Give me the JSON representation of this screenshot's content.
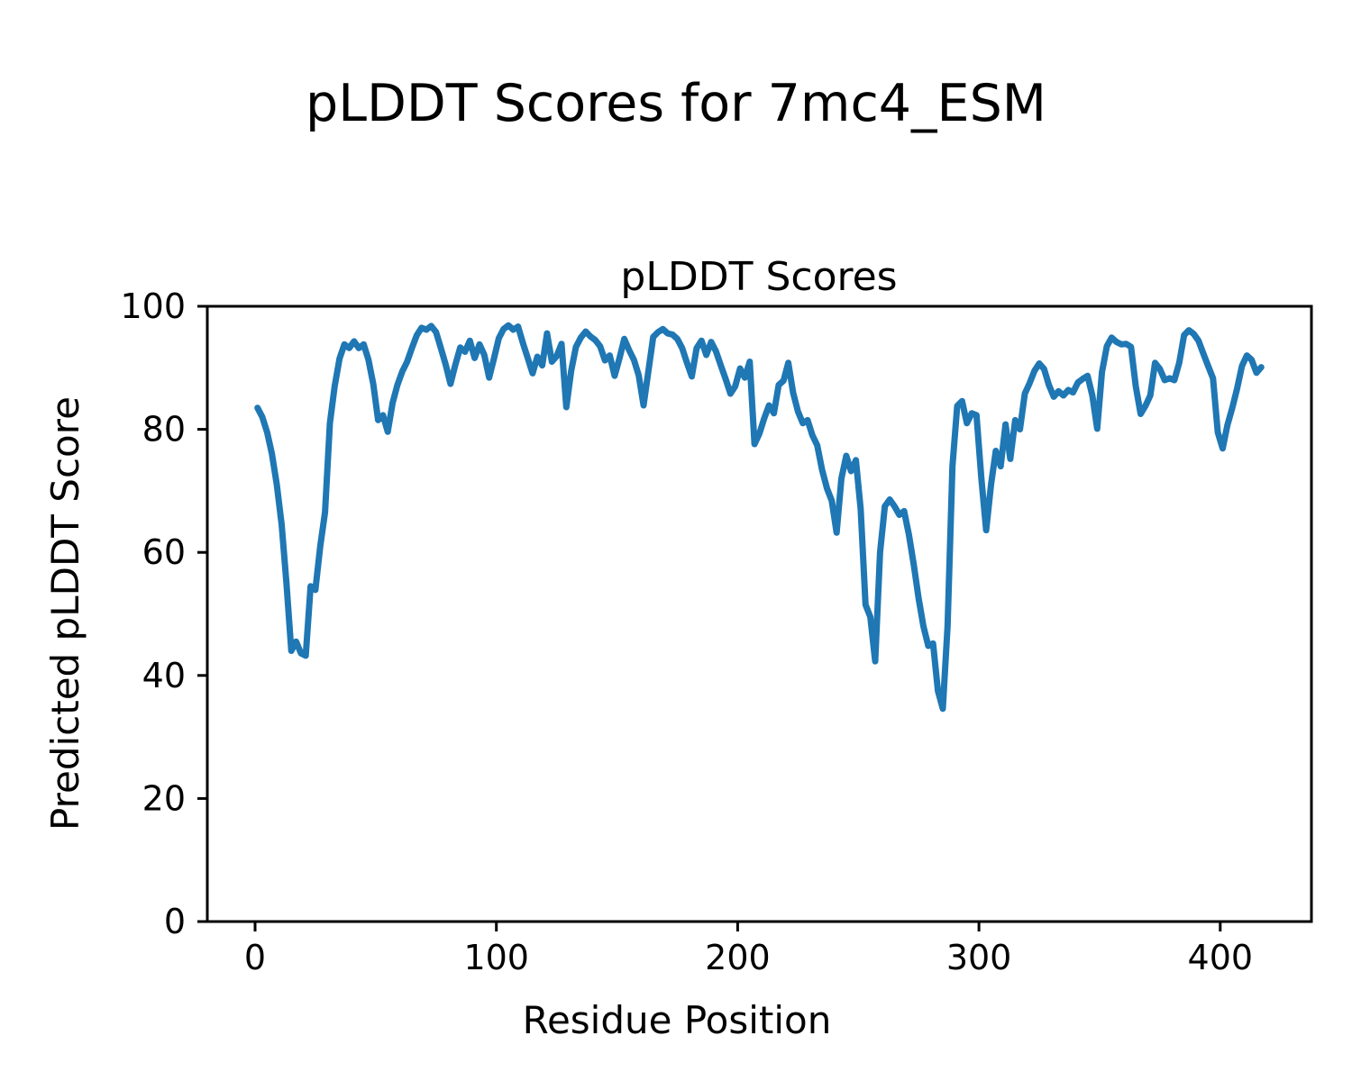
{
  "figure": {
    "suptitle": "pLDDT Scores for 7mc4_ESM",
    "axes_title": "pLDDT Scores",
    "xlabel": "Residue Position",
    "ylabel": "Predicted pLDDT Score"
  },
  "chart_data": {
    "type": "line",
    "title": "pLDDT Scores",
    "suptitle": "pLDDT Scores for 7mc4_ESM",
    "xlabel": "Residue Position",
    "ylabel": "Predicted pLDDT Score",
    "xlim": [
      -19.8,
      437.8
    ],
    "ylim": [
      0,
      100
    ],
    "x_ticks": [
      0,
      100,
      200,
      300,
      400
    ],
    "y_ticks": [
      0,
      20,
      40,
      60,
      80,
      100
    ],
    "grid": false,
    "legend": null,
    "line_color": "#1f77b4",
    "background": "#ffffff",
    "series": [
      {
        "name": "pLDDT",
        "x": [
          1,
          3,
          5,
          7,
          9,
          11,
          13,
          15,
          17,
          19,
          21,
          23,
          25,
          27,
          29,
          31,
          33,
          35,
          37,
          39,
          41,
          43,
          45,
          47,
          49,
          51,
          53,
          55,
          57,
          59,
          61,
          63,
          65,
          67,
          69,
          71,
          73,
          75,
          77,
          79,
          81,
          83,
          85,
          87,
          89,
          91,
          93,
          95,
          97,
          99,
          101,
          103,
          105,
          107,
          109,
          111,
          113,
          115,
          117,
          119,
          121,
          123,
          125,
          127,
          129,
          131,
          133,
          135,
          137,
          139,
          141,
          143,
          145,
          147,
          149,
          151,
          153,
          155,
          157,
          159,
          161,
          163,
          165,
          167,
          169,
          171,
          173,
          175,
          177,
          179,
          181,
          183,
          185,
          187,
          189,
          191,
          193,
          195,
          197,
          199,
          201,
          203,
          205,
          207,
          209,
          211,
          213,
          215,
          217,
          219,
          221,
          223,
          225,
          227,
          229,
          231,
          233,
          235,
          237,
          239,
          241,
          243,
          245,
          247,
          249,
          251,
          253,
          255,
          257,
          259,
          261,
          263,
          265,
          267,
          269,
          271,
          273,
          275,
          277,
          279,
          281,
          283,
          285,
          287,
          289,
          291,
          293,
          295,
          297,
          299,
          301,
          303,
          305,
          307,
          309,
          311,
          313,
          315,
          317,
          319,
          321,
          323,
          325,
          327,
          329,
          331,
          333,
          335,
          337,
          339,
          341,
          343,
          345,
          347,
          349,
          351,
          353,
          355,
          357,
          359,
          361,
          363,
          365,
          367,
          369,
          371,
          373,
          375,
          377,
          379,
          381,
          383,
          385,
          387,
          389,
          391,
          393,
          395,
          397,
          399,
          401,
          403,
          405,
          407,
          409,
          411,
          413,
          415,
          417
        ],
        "y": [
          83.5,
          82.0,
          79.5,
          76.0,
          71.0,
          64.5,
          55.0,
          44.0,
          45.5,
          43.6,
          43.2,
          54.5,
          53.9,
          61.0,
          66.5,
          81.0,
          87.0,
          91.5,
          93.8,
          93.2,
          94.3,
          93.2,
          93.8,
          91.3,
          87.3,
          81.5,
          82.3,
          79.6,
          84.3,
          87.2,
          89.4,
          91.0,
          93.2,
          95.3,
          96.5,
          96.2,
          96.8,
          95.8,
          93.2,
          90.5,
          87.4,
          90.5,
          93.3,
          92.6,
          94.4,
          91.6,
          93.8,
          92.1,
          88.4,
          91.5,
          94.8,
          96.3,
          96.9,
          96.2,
          96.7,
          94.0,
          91.6,
          89.1,
          91.8,
          90.4,
          95.6,
          91.0,
          91.9,
          93.9,
          83.6,
          89.5,
          93.4,
          94.9,
          95.9,
          95.1,
          94.5,
          93.5,
          91.2,
          92.0,
          88.7,
          91.5,
          94.7,
          92.9,
          91.3,
          88.8,
          83.9,
          89.5,
          95.0,
          95.8,
          96.3,
          95.6,
          95.4,
          94.7,
          93.2,
          90.8,
          88.6,
          93.2,
          94.4,
          92.1,
          94.2,
          92.7,
          90.4,
          88.2,
          85.8,
          87.0,
          89.9,
          88.4,
          91.0,
          77.6,
          79.3,
          81.8,
          83.9,
          82.6,
          87.2,
          87.9,
          90.8,
          85.9,
          82.9,
          81.0,
          81.5,
          79.0,
          77.4,
          73.4,
          70.4,
          68.4,
          63.2,
          72.0,
          75.7,
          73.2,
          75.0,
          67.0,
          51.5,
          49.5,
          42.3,
          60.0,
          67.5,
          68.6,
          67.5,
          66.1,
          66.7,
          62.8,
          58.0,
          52.5,
          48.0,
          44.8,
          45.2,
          37.5,
          34.6,
          48.0,
          74.0,
          83.8,
          84.6,
          81.0,
          82.6,
          82.3,
          72.0,
          63.6,
          71.0,
          76.5,
          74.0,
          80.8,
          75.2,
          81.5,
          80.0,
          85.8,
          87.5,
          89.5,
          90.7,
          89.8,
          87.2,
          85.3,
          86.2,
          85.5,
          86.4,
          86.0,
          87.6,
          88.2,
          88.7,
          85.5,
          80.1,
          89.3,
          93.5,
          94.9,
          94.2,
          93.8,
          93.9,
          93.4,
          87.0,
          82.5,
          83.8,
          85.5,
          90.8,
          89.8,
          88.0,
          88.3,
          88.0,
          90.8,
          95.3,
          96.1,
          95.5,
          94.4,
          92.3,
          90.3,
          88.3,
          79.5,
          76.9,
          80.7,
          83.5,
          86.6,
          90.3,
          92.0,
          91.3,
          89.2,
          90.1
        ]
      }
    ]
  }
}
